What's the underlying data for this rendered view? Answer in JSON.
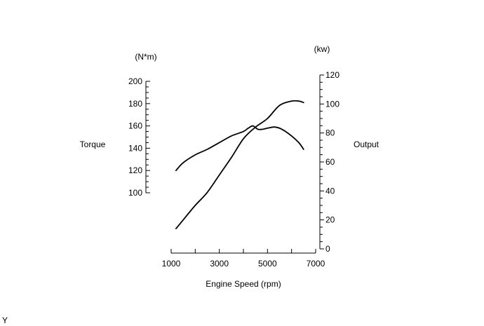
{
  "chart_data": {
    "type": "line",
    "left_axis": {
      "label": "Torque",
      "unit": "(N*m)",
      "ylim": [
        100,
        200
      ],
      "major_ticks": [
        100,
        120,
        140,
        160,
        180,
        200
      ],
      "minor_step": 5
    },
    "right_axis": {
      "label": "Output",
      "unit": "(kw)",
      "ylim": [
        0,
        120
      ],
      "major_ticks": [
        0,
        20,
        40,
        60,
        80,
        100,
        120
      ],
      "minor_step": 5
    },
    "x_axis": {
      "label": "Engine Speed (rpm)",
      "xlim": [
        1000,
        7000
      ],
      "major_ticks": [
        1000,
        3000,
        5000,
        7000
      ],
      "minor_step": 1000
    },
    "series": [
      {
        "axis": "left",
        "x": [
          1200,
          1500,
          2000,
          2500,
          3000,
          3500,
          4000,
          4200,
          4400,
          4600,
          4800,
          5000,
          5300,
          5600,
          6000,
          6300,
          6500
        ],
        "y": [
          120,
          127,
          134,
          139,
          145,
          151,
          155,
          158,
          160,
          157,
          157,
          158,
          159,
          157,
          151,
          145,
          139
        ]
      },
      {
        "axis": "right",
        "x": [
          1200,
          1500,
          2000,
          2500,
          3000,
          3500,
          4000,
          4500,
          5000,
          5500,
          6000,
          6300,
          6500
        ],
        "y": [
          14,
          20,
          30,
          39,
          51,
          63,
          76,
          84,
          90,
          99,
          102,
          102,
          101
        ]
      }
    ],
    "corner_mark": "Y"
  }
}
